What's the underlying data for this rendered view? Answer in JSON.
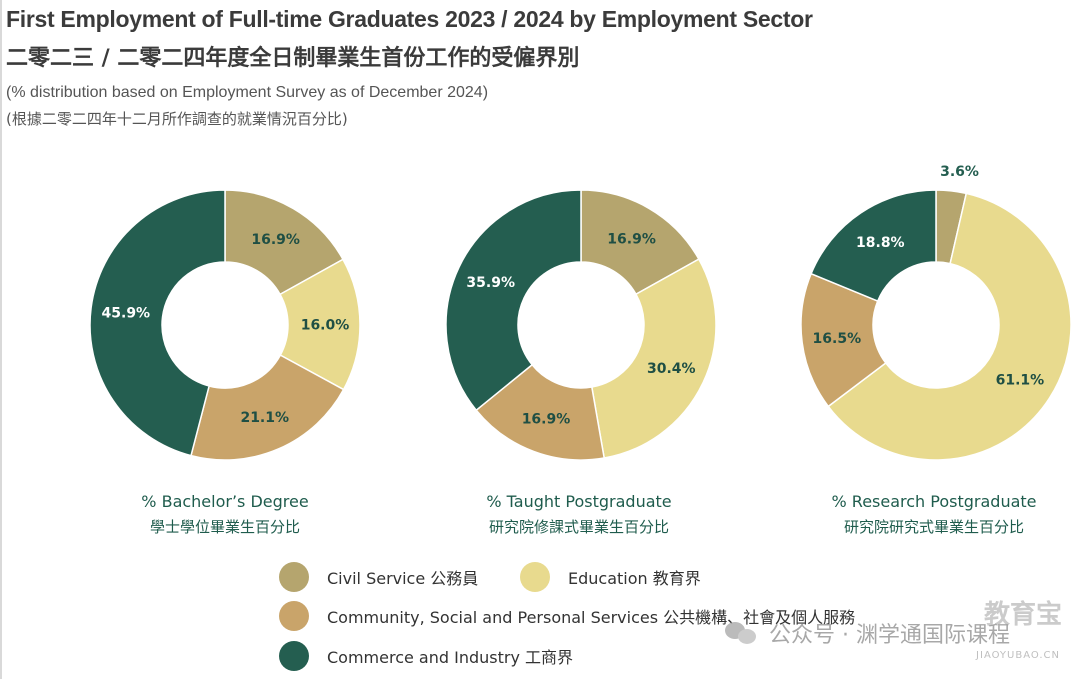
{
  "header": {
    "title_en": "First Employment of Full-time Graduates 2023 / 2024 by Employment Sector",
    "title_zh": "二零二三 / 二零二四年度全日制畢業生首份工作的受僱界別",
    "subtitle_en": "(% distribution based on Employment Survey as of December 2024)",
    "subtitle_zh": "(根據二零二四年十二月所作調查的就業情況百分比)"
  },
  "colors": {
    "civil_service": "#b5a56e",
    "education": "#e8da8e",
    "community": "#c9a46a",
    "commerce": "#245e50",
    "label_dark": "#1f4f44"
  },
  "chart_data": [
    {
      "type": "pie",
      "donut": true,
      "title_en": "% Bachelor’s Degree",
      "title_zh": "學士學位畢業生百分比",
      "slices": [
        {
          "name": "Civil Service",
          "value": 16.9,
          "label": "16.9%"
        },
        {
          "name": "Education",
          "value": 16.0,
          "label": "16.0%"
        },
        {
          "name": "Community, Social and Personal Services",
          "value": 21.1,
          "label": "21.1%"
        },
        {
          "name": "Commerce and Industry",
          "value": 45.9,
          "label": "45.9%"
        }
      ]
    },
    {
      "type": "pie",
      "donut": true,
      "title_en": "% Taught Postgraduate",
      "title_zh": "研究院修課式畢業生百分比",
      "slices": [
        {
          "name": "Civil Service",
          "value": 16.9,
          "label": "16.9%"
        },
        {
          "name": "Education",
          "value": 30.4,
          "label": "30.4%"
        },
        {
          "name": "Community, Social and Personal Services",
          "value": 16.9,
          "label": "16.9%"
        },
        {
          "name": "Commerce and Industry",
          "value": 35.9,
          "label": "35.9%"
        }
      ]
    },
    {
      "type": "pie",
      "donut": true,
      "title_en": "% Research Postgraduate",
      "title_zh": "研究院研究式畢業生百分比",
      "slices": [
        {
          "name": "Civil Service",
          "value": 3.6,
          "label": "3.6%"
        },
        {
          "name": "Education",
          "value": 61.1,
          "label": "61.1%"
        },
        {
          "name": "Community, Social and Personal Services",
          "value": 16.5,
          "label": "16.5%"
        },
        {
          "name": "Commerce and Industry",
          "value": 18.8,
          "label": "18.8%"
        }
      ]
    }
  ],
  "legend": [
    {
      "label": "Civil Service 公務員",
      "color_key": "civil_service"
    },
    {
      "label": "Education 教育界",
      "color_key": "education"
    },
    {
      "label": "Community, Social and Personal Services 公共機構、社會及個人服務",
      "color_key": "community"
    },
    {
      "label": "Commerce and Industry 工商界",
      "color_key": "commerce"
    }
  ],
  "watermark": {
    "channel": "公众号 · 渊学通国际课程",
    "brand": "教育宝",
    "site": "JIAOYUBAO.CN"
  }
}
